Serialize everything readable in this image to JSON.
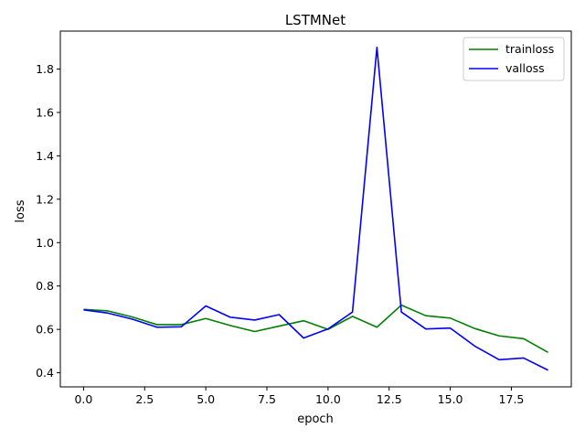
{
  "chart_data": {
    "type": "line",
    "title": "LSTMNet",
    "xlabel": "epoch",
    "ylabel": "loss",
    "xlim": [
      -0.95,
      19.95
    ],
    "ylim": [
      0.335,
      1.975
    ],
    "xticks": [
      0.0,
      2.5,
      5.0,
      7.5,
      10.0,
      12.5,
      15.0,
      17.5
    ],
    "xtick_labels": [
      "0.0",
      "2.5",
      "5.0",
      "7.5",
      "10.0",
      "12.5",
      "15.0",
      "17.5"
    ],
    "yticks": [
      0.4,
      0.6,
      0.8,
      1.0,
      1.2,
      1.4,
      1.6,
      1.8
    ],
    "ytick_labels": [
      "0.4",
      "0.6",
      "0.8",
      "1.0",
      "1.2",
      "1.4",
      "1.6",
      "1.8"
    ],
    "grid": false,
    "legend_position": "upper right",
    "x": [
      0,
      1,
      2,
      3,
      4,
      5,
      6,
      7,
      8,
      9,
      10,
      11,
      12,
      13,
      14,
      15,
      16,
      17,
      18,
      19
    ],
    "series": [
      {
        "name": "trainloss",
        "color": "#008000",
        "values": [
          0.692,
          0.685,
          0.657,
          0.622,
          0.622,
          0.65,
          0.618,
          0.59,
          0.615,
          0.64,
          0.6,
          0.66,
          0.61,
          0.712,
          0.663,
          0.652,
          0.604,
          0.57,
          0.557,
          0.494
        ]
      },
      {
        "name": "valloss",
        "color": "#0000ff",
        "values": [
          0.69,
          0.675,
          0.647,
          0.61,
          0.612,
          0.708,
          0.656,
          0.643,
          0.668,
          0.56,
          0.602,
          0.68,
          1.9,
          0.68,
          0.602,
          0.606,
          0.523,
          0.46,
          0.468,
          0.412
        ]
      }
    ]
  }
}
